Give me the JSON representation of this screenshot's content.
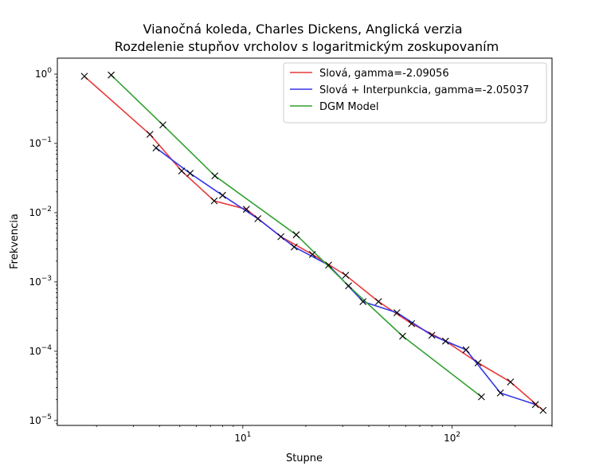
{
  "chart_data": {
    "type": "line",
    "title_line1": "Vianočná koleda, Charles Dickens, Anglická verzia",
    "title_line2": "Rozdelenie stupňov vrcholov s logaritmickým zoskupovaním",
    "xlabel": "Stupne",
    "ylabel": "Frekvencia",
    "xscale": "log",
    "yscale": "log",
    "xlim": [
      1.3,
      300
    ],
    "ylim": [
      8.5e-06,
      1.7
    ],
    "grid": false,
    "legend_position": "top-right",
    "x_ticks": [
      {
        "value": 10,
        "base": "10",
        "exp": "1"
      },
      {
        "value": 100,
        "base": "10",
        "exp": "2"
      }
    ],
    "y_ticks": [
      {
        "value": 1,
        "base": "10",
        "exp": "0"
      },
      {
        "value": 0.1,
        "base": "10",
        "exp": "−1"
      },
      {
        "value": 0.01,
        "base": "10",
        "exp": "−2"
      },
      {
        "value": 0.001,
        "base": "10",
        "exp": "−3"
      },
      {
        "value": 0.0001,
        "base": "10",
        "exp": "−4"
      },
      {
        "value": 1e-05,
        "base": "10",
        "exp": "−5"
      }
    ],
    "series": [
      {
        "name": "Slová, gamma=-2.09056",
        "color": "#e83a3a",
        "points": [
          [
            1.75,
            0.93
          ],
          [
            3.6,
            0.135
          ],
          [
            5.1,
            0.04
          ],
          [
            7.3,
            0.0148
          ],
          [
            10.4,
            0.0112
          ],
          [
            15.2,
            0.0045
          ],
          [
            21.5,
            0.0025
          ],
          [
            31.0,
            0.00125
          ],
          [
            44.5,
            0.00052
          ],
          [
            64.0,
            0.00025
          ],
          [
            93.0,
            0.00014
          ],
          [
            133.0,
            6.8e-05
          ],
          [
            190.0,
            3.6e-05
          ],
          [
            272.0,
            1.4e-05
          ]
        ]
      },
      {
        "name": "Slová + Interpunkcia, gamma=-2.05037",
        "color": "#3535e8",
        "points": [
          [
            3.85,
            0.086
          ],
          [
            5.6,
            0.037
          ],
          [
            8.0,
            0.0178
          ],
          [
            11.8,
            0.0082
          ],
          [
            17.6,
            0.0032
          ],
          [
            25.7,
            0.00175
          ],
          [
            37.5,
            0.00052
          ],
          [
            54.5,
            0.00036
          ],
          [
            80.0,
            0.00017
          ],
          [
            116.5,
            0.000105
          ],
          [
            170.0,
            2.5e-05
          ],
          [
            250.0,
            1.7e-05
          ]
        ]
      },
      {
        "name": "DGM Model",
        "color": "#32a032",
        "points": [
          [
            2.35,
            0.97
          ],
          [
            4.15,
            0.185
          ],
          [
            7.35,
            0.034
          ],
          [
            18.0,
            0.0048
          ],
          [
            32.0,
            0.00088
          ],
          [
            58.0,
            0.000165
          ],
          [
            138.0,
            2.2e-05
          ]
        ]
      }
    ]
  }
}
